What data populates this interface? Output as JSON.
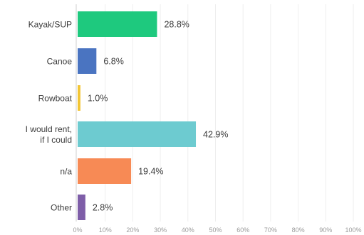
{
  "chart_data": {
    "type": "bar",
    "orientation": "horizontal",
    "categories": [
      "Kayak/SUP",
      "Canoe",
      "Rowboat",
      "I would rent, if I could",
      "n/a",
      "Other"
    ],
    "category_lines": [
      [
        "Kayak/SUP"
      ],
      [
        "Canoe"
      ],
      [
        "Rowboat"
      ],
      [
        "I would rent,",
        "if I could"
      ],
      [
        "n/a"
      ],
      [
        "Other"
      ]
    ],
    "values": [
      28.8,
      6.8,
      1.0,
      42.9,
      19.4,
      2.8
    ],
    "value_labels": [
      "28.8%",
      "6.8%",
      "1.0%",
      "42.9%",
      "19.4%",
      "2.8%"
    ],
    "bar_colors": [
      "#1ec97e",
      "#4a74c1",
      "#f2c534",
      "#6dcbd0",
      "#f78a55",
      "#7e5ea8"
    ],
    "xlim": [
      0,
      100
    ],
    "xticks": [
      "0%",
      "10%",
      "20%",
      "30%",
      "40%",
      "50%",
      "60%",
      "70%",
      "80%",
      "90%",
      "100%"
    ],
    "grid": true,
    "legend": "none"
  }
}
